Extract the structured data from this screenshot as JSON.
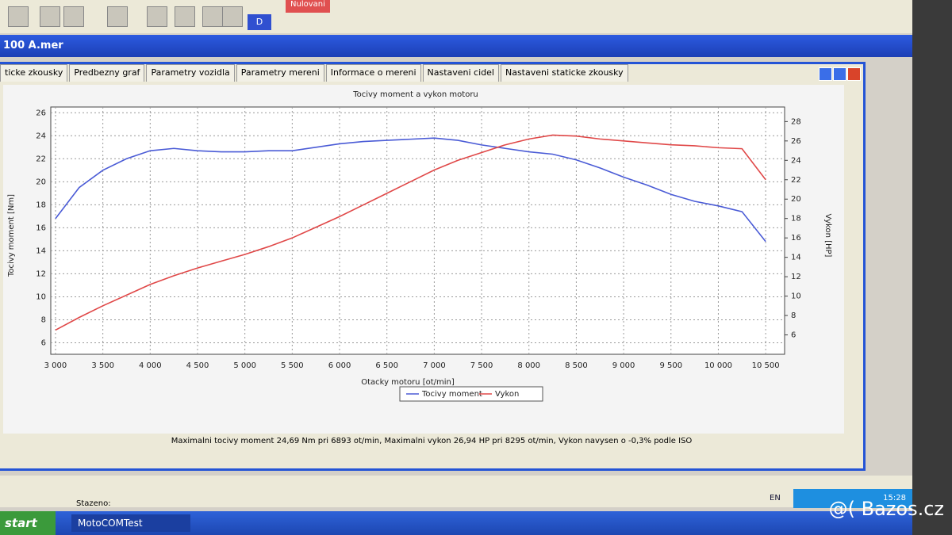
{
  "toolbar": {
    "button": "Nulovani",
    "mode": "D"
  },
  "window": {
    "title": "100 A.mer",
    "tabs": [
      "ticke zkousky",
      "Predbezny graf",
      "Parametry vozidla",
      "Parametry mereni",
      "Informace o mereni",
      "Nastaveni cidel",
      "Nastaveni staticke zkousky"
    ],
    "summary": "Maximalni tocivy moment 24,69 Nm pri 6893 ot/min,  Maximalni vykon 26,94 HP pri 8295 ot/min,  Vykon navysen o -0,3% podle ISO"
  },
  "status": {
    "label": "Stazeno:"
  },
  "taskbar": {
    "start": "start",
    "app": "MotoCOMTest",
    "lang": "EN",
    "clock": "15:28"
  },
  "watermark": "@( Bazos.cz",
  "chart_data": {
    "type": "line",
    "title": "Tocivy moment a vykon motoru",
    "x_label": "Otacky motoru [ot/min]",
    "y_label": "Tocivy moment [Nm]",
    "y2_label": "Vykon [HP]",
    "x": [
      3000,
      3250,
      3500,
      3750,
      4000,
      4250,
      4500,
      4750,
      5000,
      5250,
      5500,
      5750,
      6000,
      6250,
      6500,
      6750,
      7000,
      7250,
      7500,
      7750,
      8000,
      8250,
      8500,
      8750,
      9000,
      9250,
      9500,
      9750,
      10000,
      10250,
      10500
    ],
    "series": [
      {
        "name": "Tocivy moment",
        "color": "#4a5bd6",
        "values": [
          16.8,
          19.5,
          21,
          22,
          22.7,
          22.9,
          22.7,
          22.6,
          22.6,
          22.7,
          22.7,
          23,
          23.3,
          23.5,
          23.6,
          23.7,
          23.8,
          23.6,
          23.2,
          22.9,
          22.6,
          22.4,
          21.9,
          21.2,
          20.4,
          19.7,
          18.9,
          18.3,
          17.9,
          17.4,
          14.8
        ]
      },
      {
        "name": "Vykon",
        "color": "#e04848",
        "axis": "y2",
        "values": [
          6.5,
          7.8,
          9,
          10.1,
          11.2,
          12.1,
          12.9,
          13.6,
          14.3,
          15.1,
          16,
          17.1,
          18.2,
          19.4,
          20.6,
          21.8,
          23,
          24,
          24.8,
          25.6,
          26.2,
          26.6,
          26.5,
          26.2,
          26,
          25.8,
          25.6,
          25.5,
          25.3,
          25.2,
          22
        ]
      }
    ],
    "xlim": [
      2950,
      10700
    ],
    "xticks": [
      {
        "value": 3000,
        "label": "3 000"
      },
      {
        "value": 3500,
        "label": "3 500"
      },
      {
        "value": 4000,
        "label": "4 000"
      },
      {
        "value": 4500,
        "label": "4 500"
      },
      {
        "value": 5000,
        "label": "5 000"
      },
      {
        "value": 5500,
        "label": "5 500"
      },
      {
        "value": 6000,
        "label": "6 000"
      },
      {
        "value": 6500,
        "label": "6 500"
      },
      {
        "value": 7000,
        "label": "7 000"
      },
      {
        "value": 7500,
        "label": "7 500"
      },
      {
        "value": 8000,
        "label": "8 000"
      },
      {
        "value": 8500,
        "label": "8 500"
      },
      {
        "value": 9000,
        "label": "9 000"
      },
      {
        "value": 9500,
        "label": "9 500"
      },
      {
        "value": 10000,
        "label": "10 000"
      },
      {
        "value": 10500,
        "label": "10 500"
      }
    ],
    "ylim": [
      5,
      26.5
    ],
    "yticks": [
      6,
      8,
      10,
      12,
      14,
      16,
      18,
      20,
      22,
      24,
      26
    ],
    "y2lim": [
      4,
      29.5
    ],
    "y2ticks": [
      6,
      8,
      10,
      12,
      14,
      16,
      18,
      20,
      22,
      24,
      26,
      28
    ],
    "grid": true,
    "legend": "bottom"
  }
}
